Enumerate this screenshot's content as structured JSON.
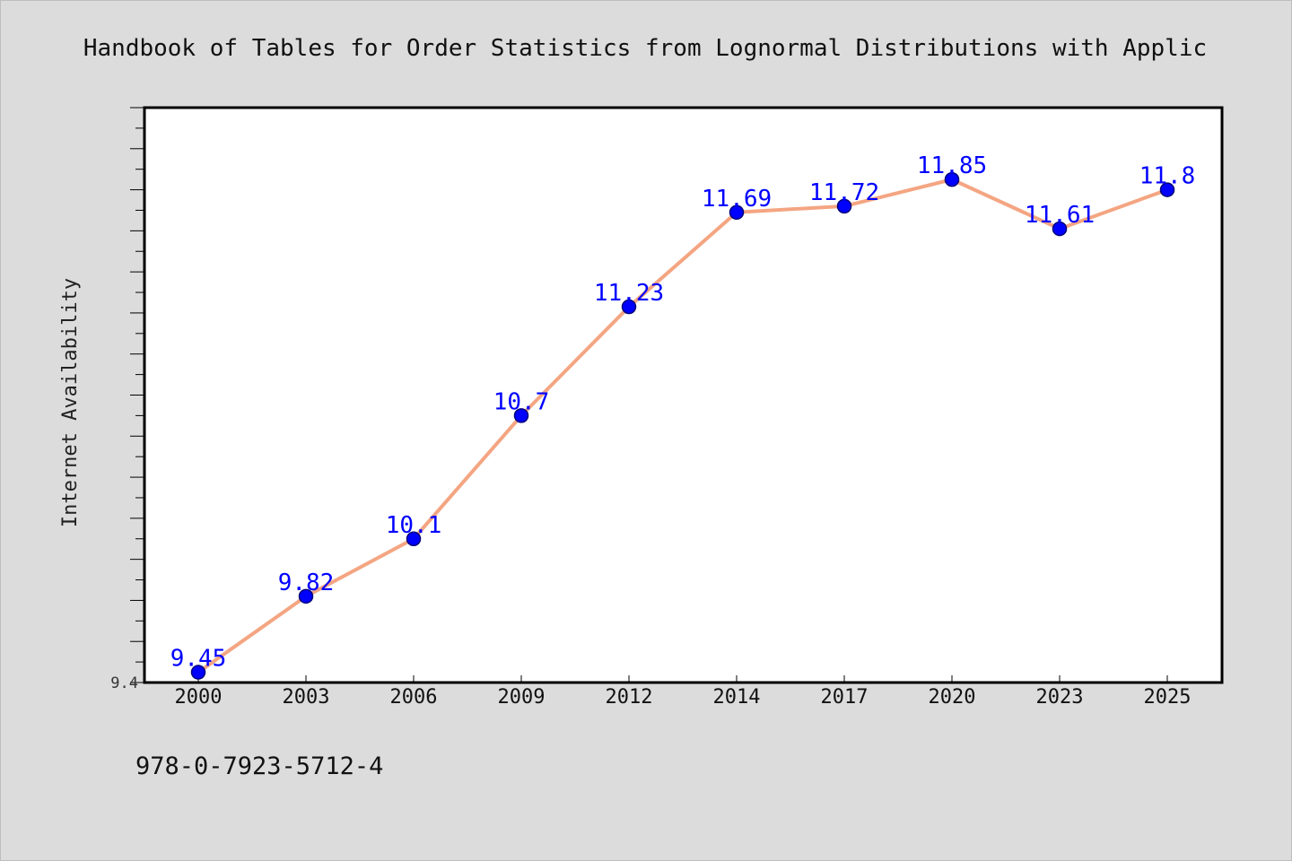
{
  "footer": {
    "isbn": "978-0-7923-5712-4"
  },
  "chart_data": {
    "type": "line",
    "title": "Handbook of Tables for Order Statistics from Lognormal Distributions with Applic",
    "xlabel": "",
    "ylabel": "Internet Availability",
    "categories": [
      "2000",
      "2003",
      "2006",
      "2009",
      "2012",
      "2014",
      "2017",
      "2020",
      "2023",
      "2025"
    ],
    "series": [
      {
        "values": [
          9.45,
          9.82,
          10.1,
          10.7,
          11.23,
          11.69,
          11.72,
          11.85,
          11.61,
          11.8
        ]
      }
    ],
    "data_labels": [
      "9.45",
      "9.82",
      "10.1",
      "10.7",
      "11.23",
      "11.69",
      "11.72",
      "11.85",
      "11.61",
      "11.8"
    ],
    "ylim": [
      9.4,
      12.2
    ],
    "y_tick_labels": [
      "9.4"
    ],
    "grid": false,
    "legend": "none",
    "colors": {
      "background": "#dcdcdc",
      "plot_background": "#ffffff",
      "line": "#f4a582",
      "marker": "#0000ff",
      "data_label": "#0000ff",
      "axis": "#000000"
    }
  }
}
